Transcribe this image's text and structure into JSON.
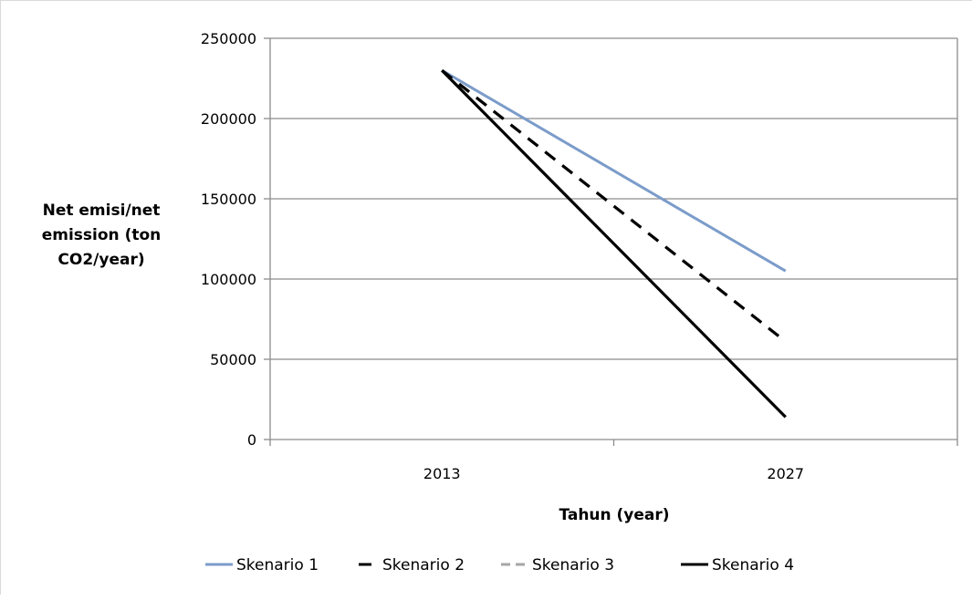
{
  "chart_data": {
    "type": "line",
    "title": "",
    "xlabel": "Tahun (year)",
    "ylabel_lines": [
      "Net emisi/net",
      "emission (ton",
      "CO2/year)"
    ],
    "categories": [
      "2013",
      "2027"
    ],
    "ylim": [
      0,
      250000
    ],
    "yticks": [
      0,
      50000,
      100000,
      150000,
      200000,
      250000
    ],
    "ytick_labels": [
      "0",
      "50000",
      "100000",
      "150000",
      "200000",
      "250000"
    ],
    "grid": true,
    "legend_position": "bottom",
    "series": [
      {
        "name": "Skenario 1",
        "values": [
          230000,
          105000
        ],
        "color": "#7b9cca",
        "dash": "solid"
      },
      {
        "name": "Skenario 2",
        "values": [
          230000,
          61000
        ],
        "color": "#000000",
        "dash": "dashed"
      },
      {
        "name": "Skenario 3",
        "values": [
          230000,
          61000
        ],
        "color": "#a6a6a6",
        "dash": "dashed"
      },
      {
        "name": "Skenario 4",
        "values": [
          230000,
          14000
        ],
        "color": "#000000",
        "dash": "solid"
      }
    ]
  }
}
